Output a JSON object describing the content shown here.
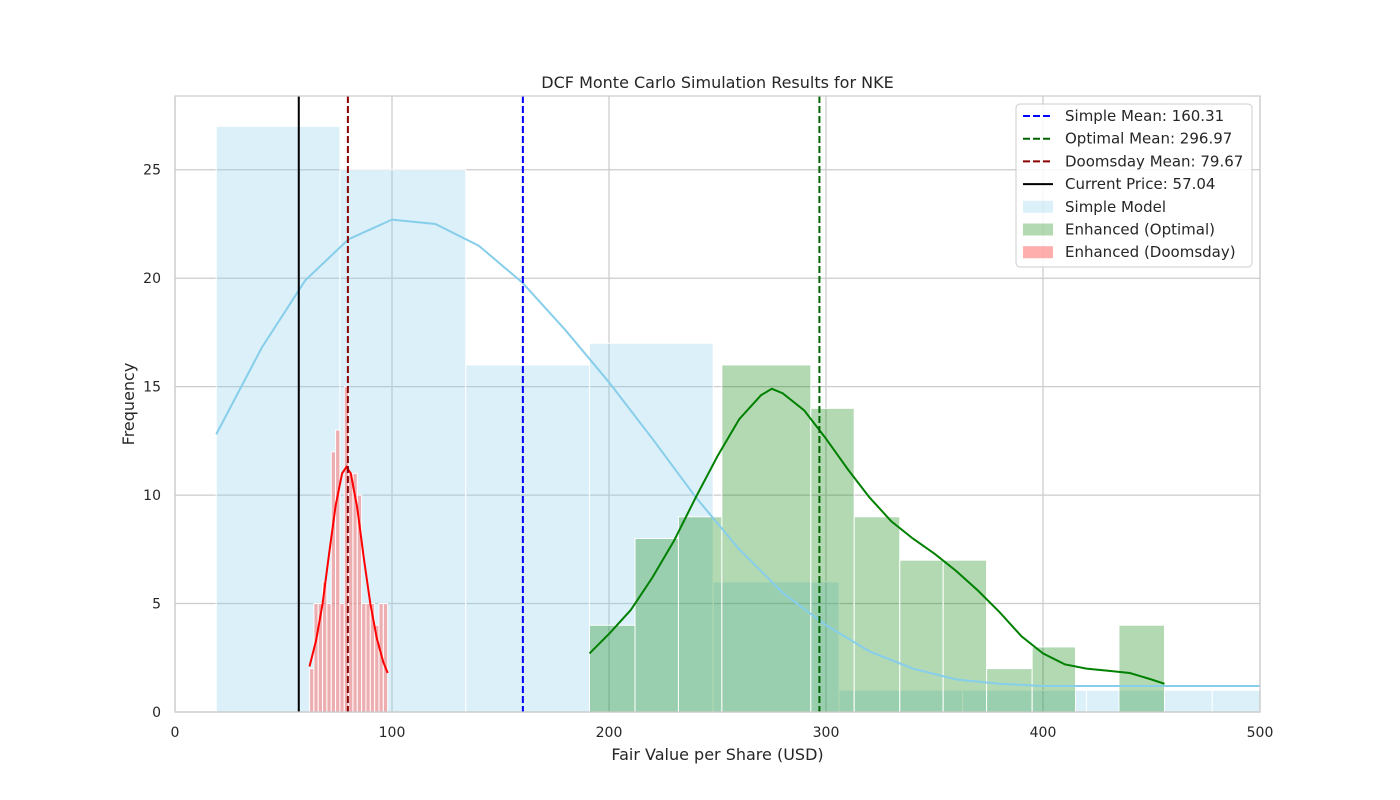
{
  "chart_data": {
    "type": "histogram",
    "title": "DCF Monte Carlo Simulation Results for NKE",
    "xlabel": "Fair Value per Share (USD)",
    "ylabel": "Frequency",
    "xlim": [
      0,
      500
    ],
    "ylim": [
      0,
      28.4
    ],
    "x_ticks": [
      0,
      100,
      200,
      300,
      400,
      500
    ],
    "y_ticks": [
      0,
      5,
      10,
      15,
      20,
      25
    ],
    "grid": true,
    "legend_position": "top-right",
    "series": [
      {
        "name": "Simple Model",
        "kind": "histogram",
        "color": "#87ceeb",
        "bins": [
          {
            "x0": 19,
            "x1": 76,
            "count": 27
          },
          {
            "x0": 76,
            "x1": 134,
            "count": 25
          },
          {
            "x0": 134,
            "x1": 191,
            "count": 16
          },
          {
            "x0": 191,
            "x1": 248,
            "count": 17
          },
          {
            "x0": 248,
            "x1": 306,
            "count": 6
          },
          {
            "x0": 306,
            "x1": 363,
            "count": 1
          },
          {
            "x0": 363,
            "x1": 420,
            "count": 1
          },
          {
            "x0": 420,
            "x1": 478,
            "count": 1
          },
          {
            "x0": 478,
            "x1": 535,
            "count": 1
          }
        ],
        "kde": [
          [
            19,
            12.8
          ],
          [
            40,
            16.8
          ],
          [
            60,
            19.9
          ],
          [
            80,
            21.8
          ],
          [
            100,
            22.7
          ],
          [
            120,
            22.5
          ],
          [
            140,
            21.5
          ],
          [
            160,
            19.8
          ],
          [
            180,
            17.6
          ],
          [
            200,
            15.2
          ],
          [
            220,
            12.6
          ],
          [
            240,
            9.9
          ],
          [
            260,
            7.5
          ],
          [
            280,
            5.5
          ],
          [
            300,
            4.0
          ],
          [
            320,
            2.8
          ],
          [
            340,
            2.0
          ],
          [
            360,
            1.5
          ],
          [
            380,
            1.3
          ],
          [
            400,
            1.2
          ],
          [
            450,
            1.2
          ],
          [
            500,
            1.2
          ]
        ]
      },
      {
        "name": "Enhanced (Optimal)",
        "kind": "histogram",
        "color": "#008000",
        "bins": [
          {
            "x0": 191,
            "x1": 212,
            "count": 4
          },
          {
            "x0": 212,
            "x1": 232,
            "count": 8
          },
          {
            "x0": 232,
            "x1": 252,
            "count": 9
          },
          {
            "x0": 252,
            "x1": 293,
            "count": 16
          },
          {
            "x0": 293,
            "x1": 313,
            "count": 14
          },
          {
            "x0": 313,
            "x1": 334,
            "count": 9
          },
          {
            "x0": 334,
            "x1": 354,
            "count": 7
          },
          {
            "x0": 354,
            "x1": 374,
            "count": 7
          },
          {
            "x0": 374,
            "x1": 395,
            "count": 2
          },
          {
            "x0": 395,
            "x1": 415,
            "count": 3
          },
          {
            "x0": 435,
            "x1": 456,
            "count": 4
          }
        ],
        "kde": [
          [
            191,
            2.7
          ],
          [
            200,
            3.6
          ],
          [
            210,
            4.7
          ],
          [
            220,
            6.2
          ],
          [
            230,
            7.9
          ],
          [
            240,
            9.9
          ],
          [
            250,
            11.8
          ],
          [
            260,
            13.5
          ],
          [
            270,
            14.6
          ],
          [
            275,
            14.9
          ],
          [
            280,
            14.7
          ],
          [
            290,
            13.9
          ],
          [
            300,
            12.6
          ],
          [
            310,
            11.2
          ],
          [
            320,
            9.9
          ],
          [
            330,
            8.8
          ],
          [
            340,
            8.0
          ],
          [
            350,
            7.3
          ],
          [
            360,
            6.5
          ],
          [
            370,
            5.6
          ],
          [
            380,
            4.6
          ],
          [
            390,
            3.5
          ],
          [
            400,
            2.7
          ],
          [
            410,
            2.2
          ],
          [
            420,
            2.0
          ],
          [
            430,
            1.9
          ],
          [
            440,
            1.8
          ],
          [
            450,
            1.5
          ],
          [
            456,
            1.3
          ]
        ]
      },
      {
        "name": "Enhanced (Doomsday)",
        "kind": "histogram",
        "color": "#ff6b6b",
        "bins": [
          {
            "x0": 62,
            "x1": 64,
            "count": 2
          },
          {
            "x0": 64,
            "x1": 66,
            "count": 5
          },
          {
            "x0": 66,
            "x1": 68,
            "count": 5
          },
          {
            "x0": 68,
            "x1": 70,
            "count": 6
          },
          {
            "x0": 70,
            "x1": 72,
            "count": 5
          },
          {
            "x0": 72,
            "x1": 74,
            "count": 12
          },
          {
            "x0": 74,
            "x1": 76,
            "count": 13
          },
          {
            "x0": 76,
            "x1": 78,
            "count": 5
          },
          {
            "x0": 78,
            "x1": 80,
            "count": 15
          },
          {
            "x0": 80,
            "x1": 82,
            "count": 11
          },
          {
            "x0": 82,
            "x1": 84,
            "count": 11
          },
          {
            "x0": 84,
            "x1": 86,
            "count": 10
          },
          {
            "x0": 86,
            "x1": 88,
            "count": 5
          },
          {
            "x0": 88,
            "x1": 90,
            "count": 5
          },
          {
            "x0": 90,
            "x1": 92,
            "count": 5
          },
          {
            "x0": 92,
            "x1": 94,
            "count": 4
          },
          {
            "x0": 94,
            "x1": 96,
            "count": 5
          },
          {
            "x0": 96,
            "x1": 98,
            "count": 5
          }
        ],
        "kde": [
          [
            62,
            2.1
          ],
          [
            65,
            3.3
          ],
          [
            68,
            5.0
          ],
          [
            71,
            7.3
          ],
          [
            74,
            9.5
          ],
          [
            77,
            11.0
          ],
          [
            79,
            11.3
          ],
          [
            81,
            11.0
          ],
          [
            84,
            9.4
          ],
          [
            87,
            7.1
          ],
          [
            90,
            5.0
          ],
          [
            93,
            3.4
          ],
          [
            96,
            2.3
          ],
          [
            98,
            1.8
          ]
        ]
      }
    ],
    "reference_lines": [
      {
        "label": "Simple Mean: 160.31",
        "value": 160.31,
        "color": "#0000ff",
        "style": "dashed"
      },
      {
        "label": "Optimal Mean: 296.97",
        "value": 296.97,
        "color": "#006400",
        "style": "dashed"
      },
      {
        "label": "Doomsday Mean: 79.67",
        "value": 79.67,
        "color": "#8b0000",
        "style": "dashed"
      },
      {
        "label": "Current Price: 57.04",
        "value": 57.04,
        "color": "#000000",
        "style": "solid"
      }
    ],
    "legend": [
      {
        "label": "Simple Mean: 160.31",
        "kind": "dashed",
        "color": "#0000ff"
      },
      {
        "label": "Optimal Mean: 296.97",
        "kind": "dashed",
        "color": "#006400"
      },
      {
        "label": "Doomsday Mean: 79.67",
        "kind": "dashed",
        "color": "#8b0000"
      },
      {
        "label": "Current Price: 57.04",
        "kind": "solid",
        "color": "#000000"
      },
      {
        "label": "Simple Model",
        "kind": "patch",
        "color": "#87ceeb"
      },
      {
        "label": "Enhanced (Optimal)",
        "kind": "patch",
        "color": "#008000"
      },
      {
        "label": "Enhanced (Doomsday)",
        "kind": "patch",
        "color": "#ff6b6b"
      }
    ]
  }
}
